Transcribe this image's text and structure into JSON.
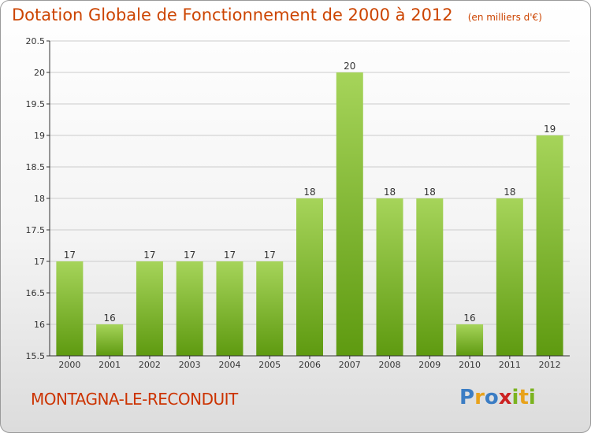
{
  "title": {
    "main": "Dotation Globale de Fonctionnement de 2000 à 2012",
    "unit": "(en milliers d'€)"
  },
  "commune": "MONTAGNA-LE-RECONDUIT",
  "logo": {
    "text": "Proxiti",
    "letters": [
      {
        "char": "P",
        "color": "#3b7dc4"
      },
      {
        "char": "r",
        "color": "#e8a21b"
      },
      {
        "char": "o",
        "color": "#3b7dc4"
      },
      {
        "char": "x",
        "color": "#cc2222"
      },
      {
        "char": "i",
        "color": "#7bb31f"
      },
      {
        "char": "t",
        "color": "#e8a21b"
      },
      {
        "char": "i",
        "color": "#7bb31f"
      }
    ]
  },
  "colors": {
    "title": "#cc4400",
    "commune": "#cc3300",
    "bar_top": "#a6d45a",
    "bar_bottom": "#5e9a10",
    "grid": "#cccccc",
    "axis": "#333333"
  },
  "chart_data": {
    "type": "bar",
    "title": "Dotation Globale de Fonctionnement de 2000 à 2012",
    "subtitle": "(en milliers d'€)",
    "xlabel": "",
    "ylabel": "",
    "categories": [
      "2000",
      "2001",
      "2002",
      "2003",
      "2004",
      "2005",
      "2006",
      "2007",
      "2008",
      "2009",
      "2010",
      "2011",
      "2012"
    ],
    "values": [
      17,
      16,
      17,
      17,
      17,
      17,
      18,
      20,
      18,
      18,
      16,
      18,
      19
    ],
    "display_values": [
      17,
      16,
      17,
      17,
      17,
      17,
      18,
      20,
      18,
      18,
      16,
      18,
      19
    ],
    "ylim": [
      15.5,
      20.5
    ],
    "yticks": [
      "15.5",
      "16",
      "16.5",
      "17",
      "17.5",
      "18",
      "18.5",
      "19",
      "19.5",
      "20",
      "20.5"
    ],
    "grid": true,
    "legend": "none"
  }
}
